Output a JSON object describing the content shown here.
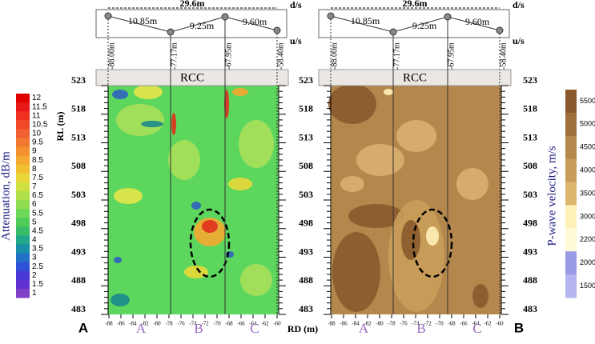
{
  "plan_diagram": {
    "total_length": "29.6m",
    "segments": [
      "10.85m",
      "9.25m",
      "9.60m"
    ],
    "downstream": "d/s",
    "upstream": "u/s"
  },
  "boreholes": [
    "-88.00m",
    "-77.17m",
    "-67.95m",
    "-58.40m"
  ],
  "cap_label": "RCC",
  "y_axis": {
    "label": "RL (m)",
    "ticks": [
      523,
      518,
      513,
      508,
      503,
      498,
      493,
      488,
      483
    ]
  },
  "x_axis": {
    "label": "RD (m)",
    "ticks": [
      -88,
      -86,
      -84,
      -82,
      -80,
      -78,
      -76,
      -74,
      -72,
      -70,
      -68,
      -66,
      -64,
      -62,
      -60
    ]
  },
  "sections": [
    "A",
    "B",
    "C"
  ],
  "panels": [
    {
      "letter": "A",
      "colorbar": {
        "title": "Attenuation, dB/m",
        "ticks": [
          12,
          11.5,
          11,
          10.5,
          10,
          9.5,
          9,
          8.5,
          8,
          7.5,
          7,
          6.5,
          6,
          5.5,
          5,
          4.5,
          4,
          3.5,
          3,
          2.5,
          2,
          1.5,
          1
        ],
        "colors": [
          "#e00000",
          "#e81818",
          "#f03020",
          "#f04828",
          "#f06030",
          "#f07830",
          "#f49030",
          "#f4a830",
          "#f0c030",
          "#e8d838",
          "#d0e040",
          "#b0e048",
          "#90dc50",
          "#70d858",
          "#50cc58",
          "#38bc68",
          "#20a888",
          "#1890a8",
          "#2070c8",
          "#3050d8",
          "#4838d8",
          "#6030d0",
          "#8040c8"
        ]
      }
    },
    {
      "letter": "B",
      "colorbar": {
        "title": "P-wave velocity, m/s",
        "ticks": [
          5500,
          5000,
          4500,
          4000,
          3500,
          3000,
          2200,
          2000,
          1500
        ],
        "colors": [
          "#8a5a2e",
          "#a0703c",
          "#b4874c",
          "#c89e5a",
          "#ddb770",
          "#fff0b8",
          "#fffad8",
          "#9a9ae8",
          "#b4b4f0"
        ]
      }
    }
  ]
}
